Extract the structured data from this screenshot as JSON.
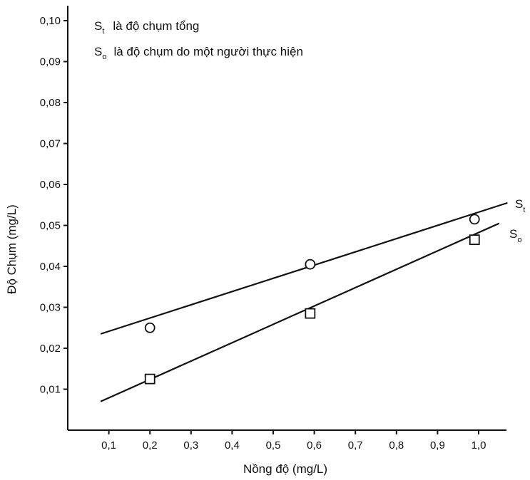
{
  "chart_data": {
    "type": "scatter",
    "xlabel": "Nồng độ (mg/L)",
    "ylabel": "Độ Chụm (mg/L)",
    "xlim": [
      0,
      1.07
    ],
    "ylim": [
      0,
      0.105
    ],
    "x_ticks": [
      0.1,
      0.2,
      0.3,
      0.4,
      0.5,
      0.6,
      0.7,
      0.8,
      0.9,
      1.0
    ],
    "x_tick_labels": [
      "0,1",
      "0,2",
      "0,3",
      "0,4",
      "0,5",
      "0,6",
      "0,7",
      "0,8",
      "0,9",
      "1,0"
    ],
    "y_ticks": [
      0.01,
      0.02,
      0.03,
      0.04,
      0.05,
      0.06,
      0.07,
      0.08,
      0.09,
      0.1
    ],
    "y_tick_labels": [
      "0,01",
      "0,02",
      "0,03",
      "0,04",
      "0,05",
      "0,06",
      "0,07",
      "0,08",
      "0,09",
      "0,10"
    ],
    "grid": false,
    "legend": [
      {
        "symbol": "S",
        "subscript": "t",
        "text": "là độ chụm tổng"
      },
      {
        "symbol": "S",
        "subscript": "o",
        "text": "là độ chụm do một người thực hiện"
      }
    ],
    "series": [
      {
        "symbol": "S",
        "subscript": "t",
        "marker": "circle",
        "points": [
          [
            0.2,
            0.025
          ],
          [
            0.59,
            0.0405
          ],
          [
            0.99,
            0.0515
          ]
        ],
        "fit_line": [
          [
            0.08,
            0.0235
          ],
          [
            1.07,
            0.0555
          ]
        ]
      },
      {
        "symbol": "S",
        "subscript": "o",
        "marker": "square",
        "points": [
          [
            0.2,
            0.0125
          ],
          [
            0.59,
            0.0285
          ],
          [
            0.99,
            0.0465
          ]
        ],
        "fit_line": [
          [
            0.08,
            0.007
          ],
          [
            1.05,
            0.0505
          ]
        ]
      }
    ]
  }
}
